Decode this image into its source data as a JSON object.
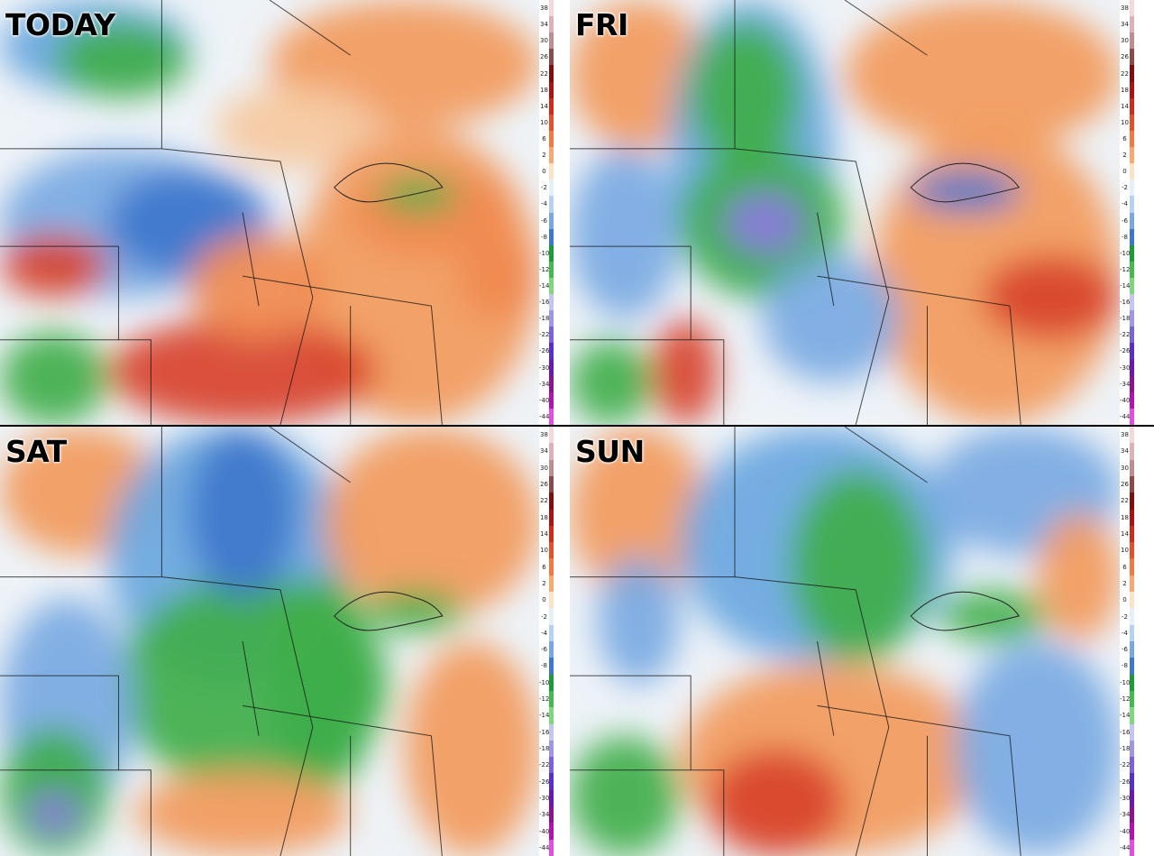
{
  "panels": [
    {
      "id": "today",
      "label": "TODAY"
    },
    {
      "id": "fri",
      "label": "FRI"
    },
    {
      "id": "sat",
      "label": "SAT"
    },
    {
      "id": "sun",
      "label": "SUN"
    }
  ],
  "colorbar": {
    "ticks": [
      "38",
      "34",
      "30",
      "26",
      "22",
      "18",
      "14",
      "10",
      "6",
      "2",
      "0",
      "-2",
      "-4",
      "-6",
      "-8",
      "-10",
      "-12",
      "-14",
      "-16",
      "-18",
      "-22",
      "-26",
      "-30",
      "-34",
      "-40",
      "-44"
    ],
    "colors": [
      "#f3d9dc",
      "#d9b3b7",
      "#b98f92",
      "#8a4a4a",
      "#7a1010",
      "#a81414",
      "#d02a1c",
      "#e4502c",
      "#f07a44",
      "#f7a873",
      "#fbe3c8",
      "#e6f0fa",
      "#b7d2ef",
      "#7aa7df",
      "#3f77cc",
      "#1f9a3a",
      "#45b94f",
      "#7fd67c",
      "#c3c7ee",
      "#9f97e4",
      "#7b62d8",
      "#5a2fc4",
      "#6a1aa8",
      "#8a138f",
      "#b014b0",
      "#e04fe0"
    ]
  },
  "colors": {
    "warm": "#f29a5c",
    "hot": "#d8432a",
    "cold_blue": "#3f77cc",
    "cold_green": "#3fae4a",
    "very_cold_purple": "#8c7ae0"
  }
}
